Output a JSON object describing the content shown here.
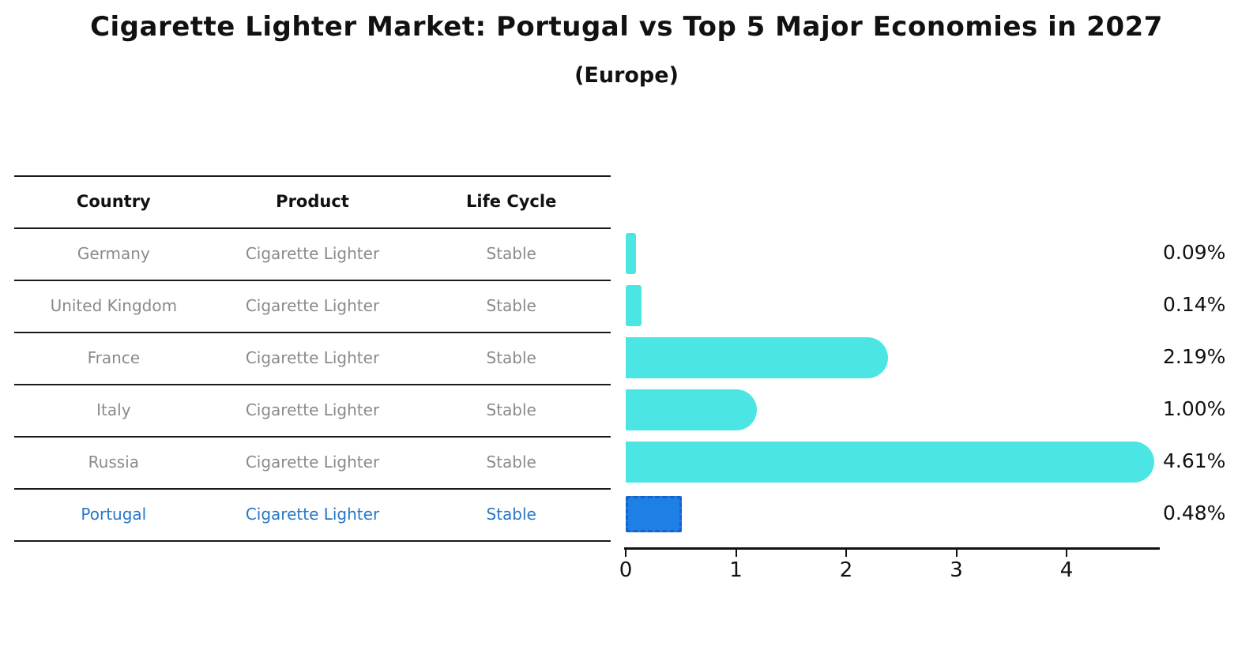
{
  "title": "Cigarette Lighter Market: Portugal vs Top 5 Major Economies in 2027",
  "subtitle": "(Europe)",
  "table": {
    "headers": [
      "Country",
      "Product",
      "Life Cycle"
    ],
    "rows": [
      {
        "country": "Germany",
        "product": "Cigarette Lighter",
        "life_cycle": "Stable",
        "highlight": false
      },
      {
        "country": "United Kingdom",
        "product": "Cigarette Lighter",
        "life_cycle": "Stable",
        "highlight": false
      },
      {
        "country": "France",
        "product": "Cigarette Lighter",
        "life_cycle": "Stable",
        "highlight": false
      },
      {
        "country": "Italy",
        "product": "Cigarette Lighter",
        "life_cycle": "Stable",
        "highlight": false
      },
      {
        "country": "Russia",
        "product": "Cigarette Lighter",
        "life_cycle": "Stable",
        "highlight": false
      },
      {
        "country": "Portugal",
        "product": "Cigarette Lighter",
        "life_cycle": "Stable",
        "highlight": true
      }
    ]
  },
  "chart_data": {
    "type": "bar",
    "orientation": "horizontal",
    "title": "Cigarette Lighter Market: Portugal vs Top 5 Major Economies in 2027",
    "subtitle": "(Europe)",
    "categories": [
      "Germany",
      "United Kingdom",
      "France",
      "Italy",
      "Russia",
      "Portugal"
    ],
    "values": [
      0.09,
      0.14,
      2.19,
      1.0,
      4.61,
      0.48
    ],
    "value_labels": [
      "0.09%",
      "0.14%",
      "2.19%",
      "1.00%",
      "4.61%",
      "0.48%"
    ],
    "xlabel": "",
    "ylabel": "",
    "xlim": [
      0,
      4.85
    ],
    "x_ticks": [
      "0",
      "1",
      "2",
      "3",
      "4"
    ],
    "grid": false,
    "legend": "none",
    "bar_color": "#4BE6E4",
    "highlight_index": 5,
    "highlight_color": "#1E80E6",
    "highlight_border_color": "#1563C8"
  },
  "colors": {
    "header_text": "#111111",
    "row_text": "#8A8A8A",
    "highlight_text": "#2878C8",
    "table_line": "#1A1A1A",
    "axis": "#111111"
  }
}
